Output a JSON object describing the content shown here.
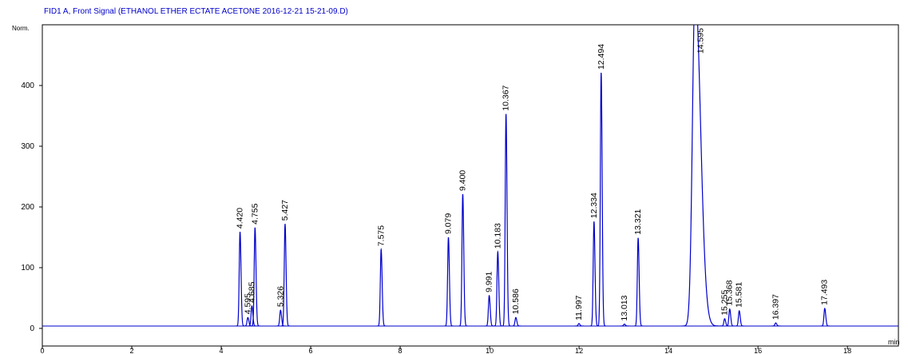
{
  "chart_data": {
    "type": "chromatogram",
    "title": "FID1 A, Front Signal (ETHANOL ETHER ECTATE ACETONE 2016-12-21 15-21-09.D)",
    "y_label": "Norm.",
    "x_label": "min",
    "color": "#0000cc",
    "x": [
      {
        "value": 4.42,
        "label": "4.420"
      },
      {
        "value": 4.595,
        "label": "4.595"
      },
      {
        "value": 4.685,
        "label": "4.685"
      },
      {
        "value": 4.755,
        "label": "4.755"
      },
      {
        "value": 5.326,
        "label": "5.326"
      },
      {
        "value": 5.427,
        "label": "5.427"
      },
      {
        "value": 7.575,
        "label": "7.575"
      },
      {
        "value": 9.079,
        "label": "9.079"
      },
      {
        "value": 9.4,
        "label": "9.400"
      },
      {
        "value": 9.991,
        "label": "9.991"
      },
      {
        "value": 10.183,
        "label": "10.183"
      },
      {
        "value": 10.367,
        "label": "10.367"
      },
      {
        "value": 10.586,
        "label": "10.586"
      },
      {
        "value": 11.997,
        "label": "11.997"
      },
      {
        "value": 12.334,
        "label": "12.334"
      },
      {
        "value": 12.494,
        "label": "12.494"
      },
      {
        "value": 13.013,
        "label": "13.013"
      },
      {
        "value": 13.321,
        "label": "13.321"
      },
      {
        "value": 14.595,
        "label": "14.595"
      },
      {
        "value": 15.255,
        "label": "15.255"
      },
      {
        "value": 15.368,
        "label": "15.368"
      },
      {
        "value": 15.581,
        "label": "15.581"
      },
      {
        "value": 16.397,
        "label": "16.397"
      },
      {
        "value": 17.493,
        "label": "17.493"
      }
    ],
    "values": [
      159,
      18,
      37,
      166,
      30,
      172,
      130,
      150,
      221,
      54,
      126,
      353,
      18,
      8,
      176,
      421,
      7,
      149,
      560,
      16,
      32,
      29,
      9,
      33
    ],
    "xlim": [
      0,
      19.14
    ],
    "ylim": [
      -29,
      500
    ],
    "xticks": [
      0,
      2,
      4,
      6,
      8,
      10,
      12,
      14,
      16,
      18
    ],
    "yticks": [
      0,
      100,
      200,
      300,
      400
    ]
  }
}
